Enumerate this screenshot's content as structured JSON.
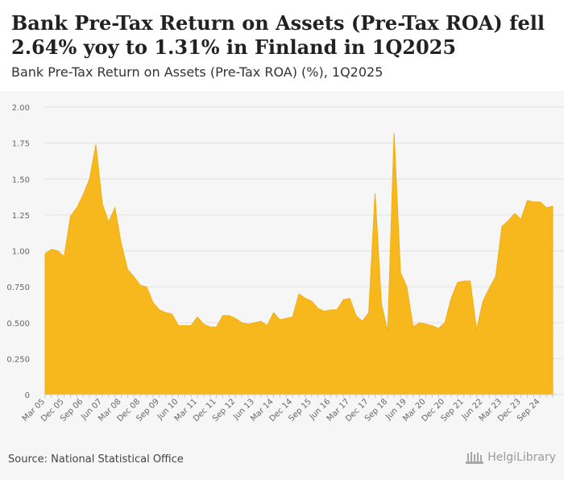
{
  "title": "Bank Pre-Tax Return on Assets (Pre-Tax ROA) fell 2.64% yoy to 1.31% in Finland in 1Q2025",
  "subtitle": "Bank Pre-Tax Return on Assets (Pre-Tax ROA) (%), 1Q2025",
  "source": "Source: National Statistical Office",
  "logo_text": "HelgiLibrary",
  "colors": {
    "area": "#f7b81e",
    "plot_bg": "#f6f6f6",
    "grid": "#e2e2e2",
    "axis_text": "#666666"
  },
  "chart_data": {
    "type": "area",
    "title": "Bank Pre-Tax Return on Assets (Pre-Tax ROA) (%), 1Q2025",
    "xlabel": "",
    "ylabel": "",
    "ylim": [
      0,
      2.0
    ],
    "y_ticks": [
      "0",
      "0.250",
      "0.500",
      "0.750",
      "1.00",
      "1.25",
      "1.50",
      "1.75",
      "2.00"
    ],
    "y_tick_values": [
      0,
      0.25,
      0.5,
      0.75,
      1.0,
      1.25,
      1.5,
      1.75,
      2.0
    ],
    "x_tick_labels": [
      "Mar 05",
      "Dec 05",
      "Sep 06",
      "Jun 07",
      "Mar 08",
      "Dec 08",
      "Sep 09",
      "Jun 10",
      "Mar 11",
      "Dec 11",
      "Sep 12",
      "Jun 13",
      "Mar 14",
      "Dec 14",
      "Sep 15",
      "Jun 16",
      "Mar 17",
      "Dec 17",
      "Sep 18",
      "Jun 19",
      "Mar 20",
      "Dec 20",
      "Sep 21",
      "Jun 22",
      "Mar 23",
      "Dec 23",
      "Sep 24"
    ],
    "x_tick_index": [
      0,
      3,
      6,
      9,
      12,
      15,
      18,
      21,
      24,
      27,
      30,
      33,
      36,
      39,
      42,
      45,
      48,
      51,
      54,
      57,
      60,
      63,
      66,
      69,
      72,
      75,
      78
    ],
    "series": [
      {
        "name": "Bank Pre-Tax ROA (%)",
        "values": [
          0.98,
          1.01,
          1.0,
          0.96,
          1.24,
          1.3,
          1.39,
          1.5,
          1.74,
          1.33,
          1.2,
          1.3,
          1.05,
          0.87,
          0.82,
          0.76,
          0.75,
          0.64,
          0.59,
          0.57,
          0.56,
          0.48,
          0.48,
          0.48,
          0.54,
          0.49,
          0.47,
          0.47,
          0.55,
          0.55,
          0.53,
          0.5,
          0.49,
          0.5,
          0.51,
          0.48,
          0.57,
          0.52,
          0.53,
          0.54,
          0.7,
          0.67,
          0.65,
          0.6,
          0.58,
          0.59,
          0.59,
          0.66,
          0.67,
          0.55,
          0.51,
          0.57,
          1.4,
          0.63,
          0.44,
          1.82,
          0.85,
          0.75,
          0.47,
          0.5,
          0.49,
          0.48,
          0.46,
          0.5,
          0.67,
          0.78,
          0.79,
          0.79,
          0.45,
          0.65,
          0.74,
          0.82,
          1.17,
          1.21,
          1.26,
          1.22,
          1.35,
          1.34,
          1.34,
          1.3,
          1.31
        ]
      }
    ]
  }
}
